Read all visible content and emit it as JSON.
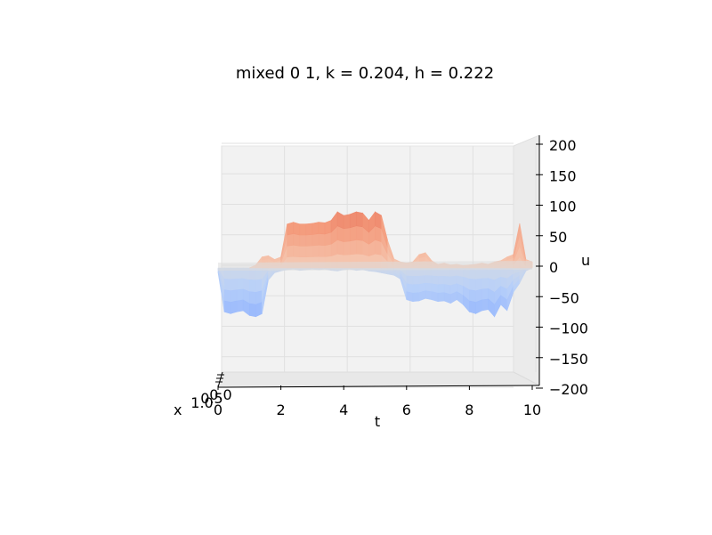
{
  "chart_data": {
    "type": "surface",
    "title": "mixed 0 1, k = 0.204, h = 0.222",
    "xlabel": "t",
    "ylabel": "x",
    "zlabel": "u",
    "xlim": [
      0,
      10
    ],
    "ylim": [
      0.0,
      1.0
    ],
    "zlim": [
      -200,
      200
    ],
    "x_ticks": [
      "0",
      "2",
      "4",
      "6",
      "8",
      "10"
    ],
    "y_ticks": [
      "0.0",
      "0.5",
      "1.0"
    ],
    "z_ticks": [
      "200",
      "150",
      "100",
      "50",
      "0",
      "−50",
      "−100",
      "−150",
      "−200"
    ],
    "colormap": "coolwarm",
    "grid": true,
    "t": [
      0,
      0.2,
      0.4,
      0.6,
      0.8,
      1.0,
      1.2,
      1.4,
      1.6,
      1.8,
      2.0,
      2.2,
      2.4,
      2.6,
      2.8,
      3.0,
      3.2,
      3.4,
      3.6,
      3.8,
      4.0,
      4.2,
      4.4,
      4.6,
      4.8,
      5.0,
      5.2,
      5.4,
      5.6,
      5.8,
      6.0,
      6.2,
      6.4,
      6.6,
      6.8,
      7.0,
      7.2,
      7.4,
      7.6,
      7.8,
      8.0,
      8.2,
      8.4,
      8.6,
      8.8,
      9.0,
      9.2,
      9.4,
      9.6,
      9.8,
      10.0
    ],
    "u_max": [
      0,
      0,
      0,
      0,
      0,
      0,
      5,
      18,
      20,
      14,
      18,
      72,
      75,
      72,
      72,
      73,
      75,
      74,
      78,
      92,
      86,
      88,
      92,
      90,
      78,
      92,
      86,
      45,
      15,
      10,
      8,
      10,
      22,
      25,
      12,
      6,
      8,
      5,
      6,
      4,
      5,
      6,
      8,
      6,
      10,
      12,
      18,
      22,
      8,
      14,
      10
    ],
    "u_min": [
      -8,
      -72,
      -75,
      -72,
      -70,
      -78,
      -80,
      -75,
      -20,
      -8,
      -5,
      -3,
      -2,
      -4,
      -3,
      -2,
      -3,
      -2,
      -4,
      -5,
      -3,
      -2,
      -4,
      -3,
      -5,
      -6,
      -8,
      -10,
      -12,
      -18,
      -52,
      -55,
      -54,
      -50,
      -52,
      -55,
      -54,
      -58,
      -52,
      -60,
      -72,
      -75,
      -70,
      -68,
      -80,
      -60,
      -70,
      -40,
      -25,
      -5,
      0
    ],
    "u_spike": [
      0,
      0,
      0,
      0,
      0,
      0,
      0,
      0,
      0,
      0,
      0,
      0,
      0,
      0,
      0,
      0,
      0,
      0,
      0,
      0,
      0,
      0,
      0,
      0,
      0,
      0,
      0,
      0,
      0,
      0,
      0,
      0,
      0,
      0,
      0,
      0,
      0,
      0,
      0,
      0,
      0,
      0,
      0,
      0,
      0,
      0,
      0,
      0,
      65,
      0,
      0
    ]
  }
}
